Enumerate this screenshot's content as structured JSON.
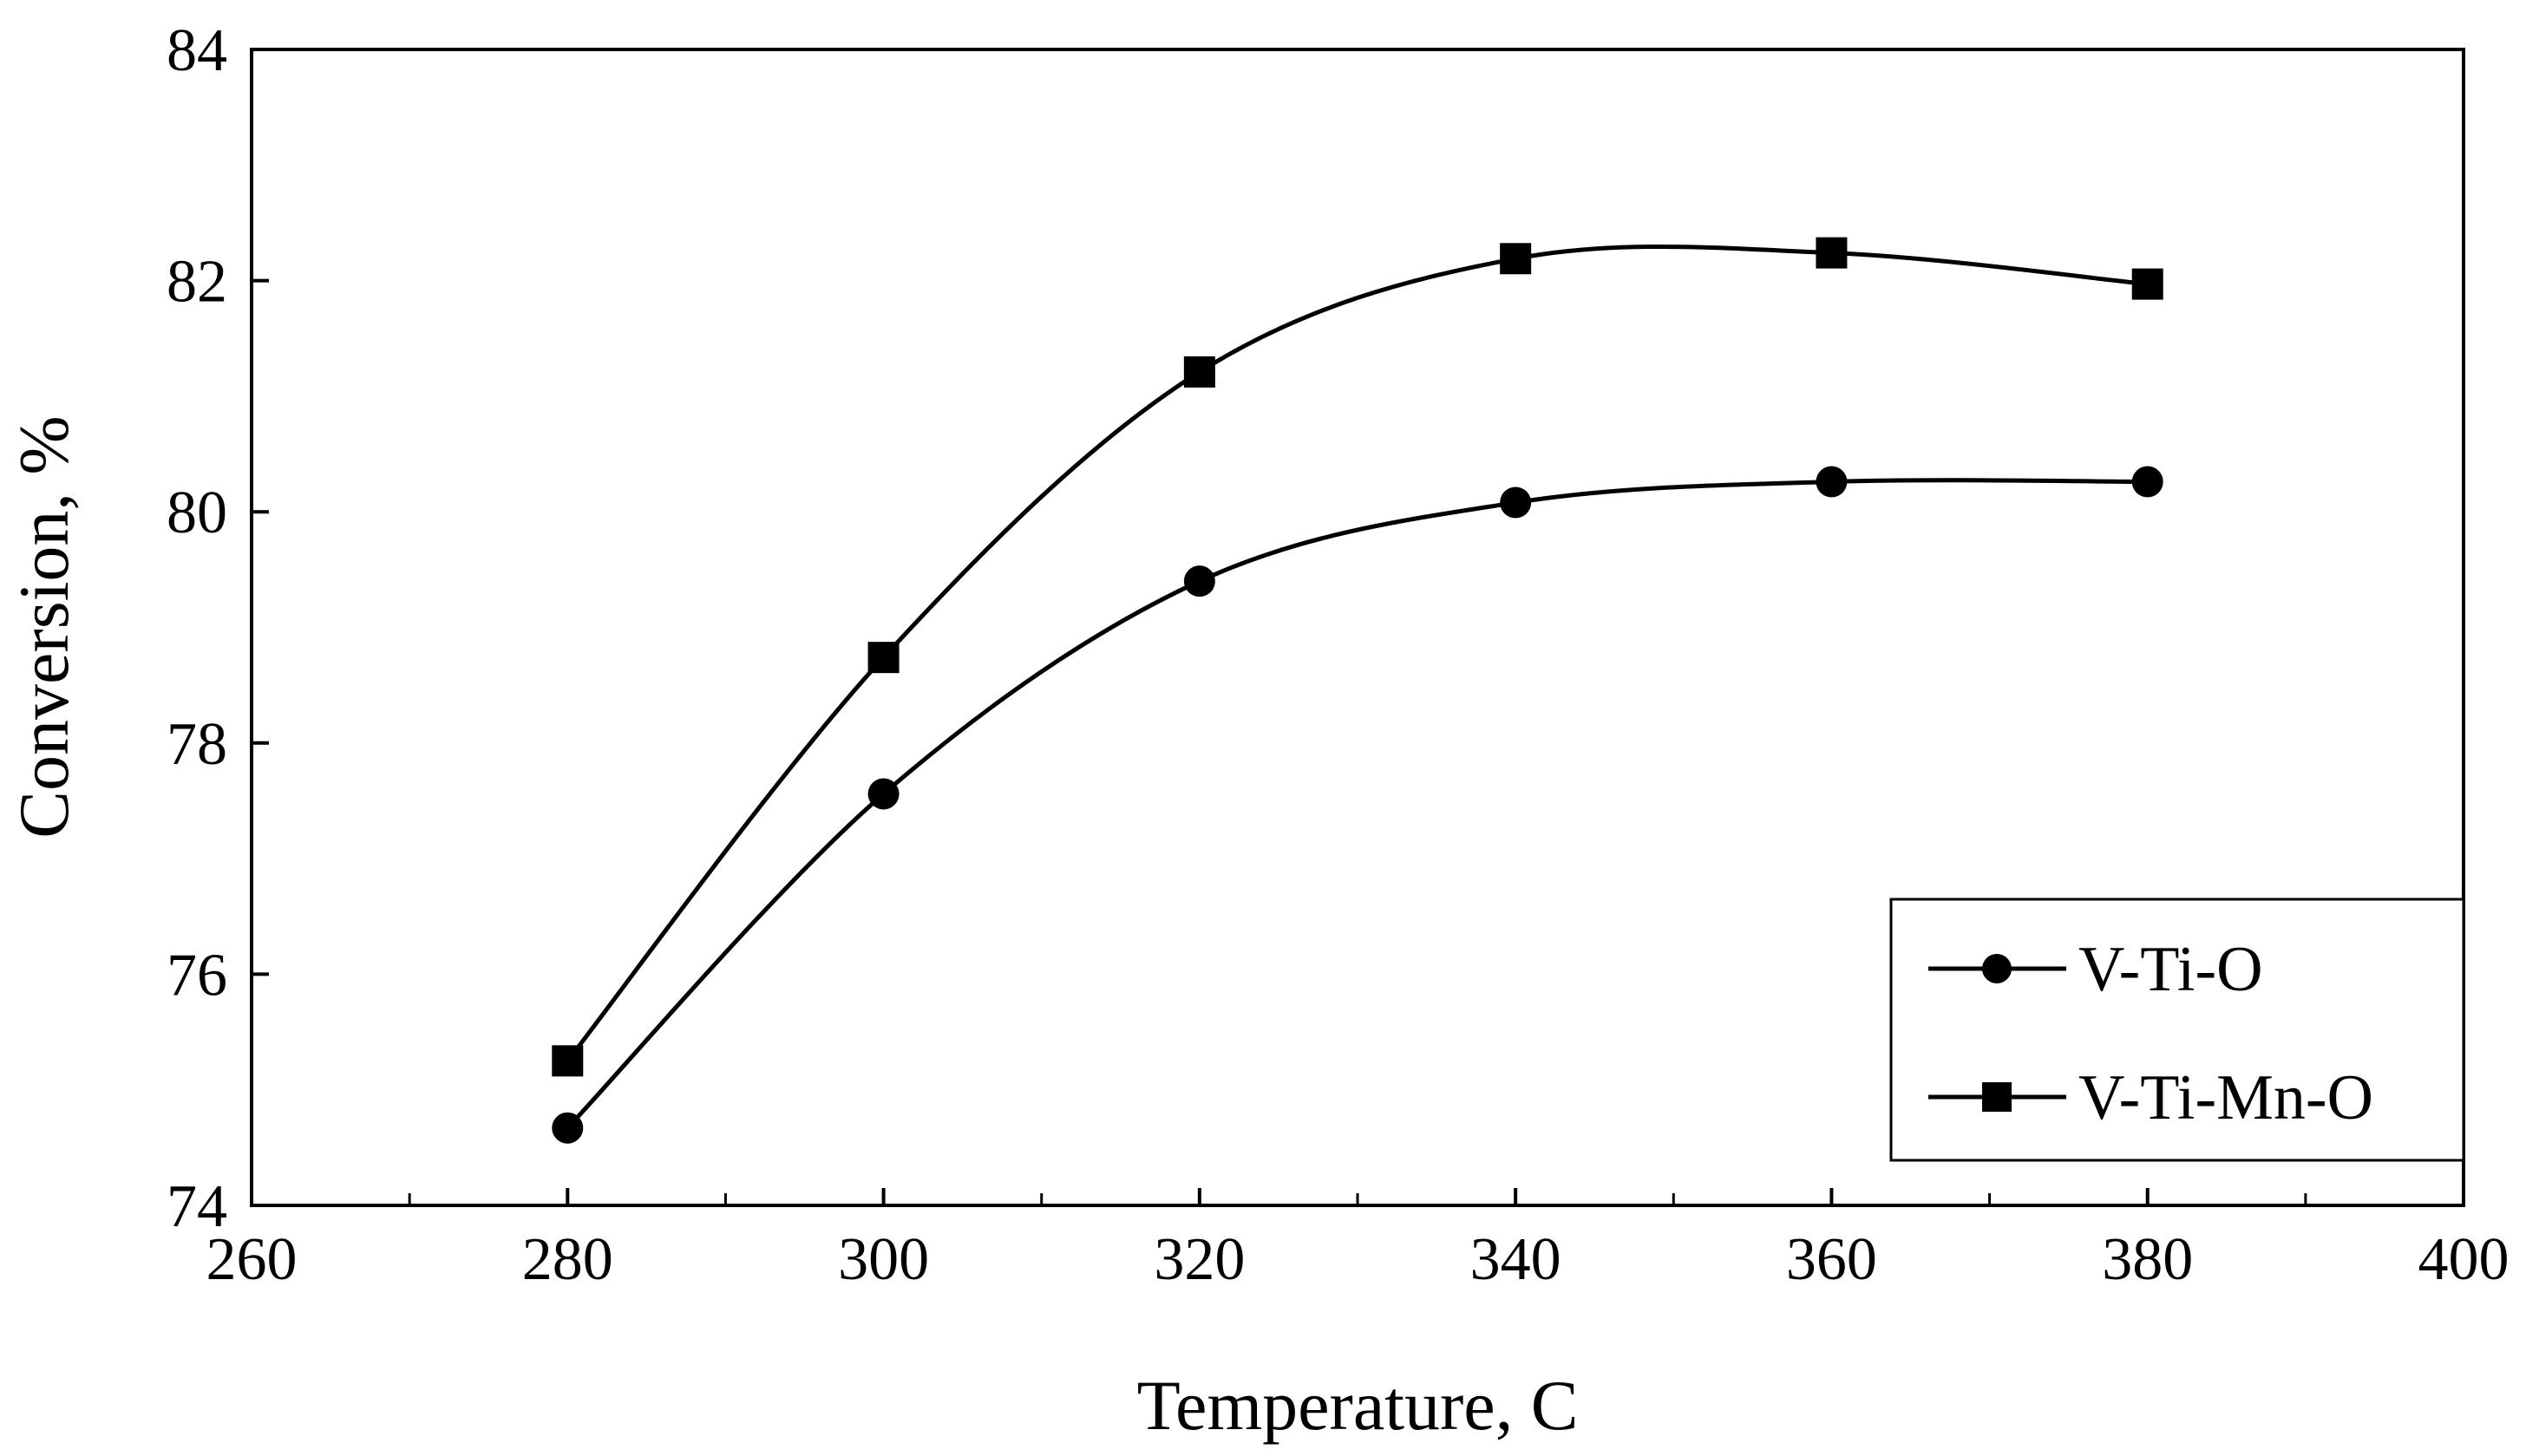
{
  "chart_data": {
    "type": "line",
    "title": "",
    "xlabel": "Temperature, C",
    "ylabel": "Conversion, %",
    "xlim": [
      260,
      400
    ],
    "ylim": [
      74,
      84
    ],
    "x_major_ticks": [
      260,
      280,
      300,
      320,
      340,
      360,
      380,
      400
    ],
    "x_minor_ticks": [
      270,
      290,
      310,
      330,
      350,
      370,
      390
    ],
    "y_major_ticks": [
      74,
      76,
      78,
      80,
      82,
      84
    ],
    "grid": false,
    "legend_position": "bottom-right",
    "line_color": "#000000",
    "series": [
      {
        "name": "V-Ti-O",
        "marker": "circle",
        "x": [
          280,
          300,
          320,
          340,
          360,
          380
        ],
        "values": [
          74.67,
          77.56,
          79.4,
          80.08,
          80.26,
          80.26
        ]
      },
      {
        "name": "V-Ti-Mn-O",
        "marker": "square",
        "x": [
          280,
          300,
          320,
          340,
          360,
          380
        ],
        "values": [
          75.25,
          78.74,
          81.21,
          82.19,
          82.24,
          81.97
        ]
      }
    ]
  }
}
